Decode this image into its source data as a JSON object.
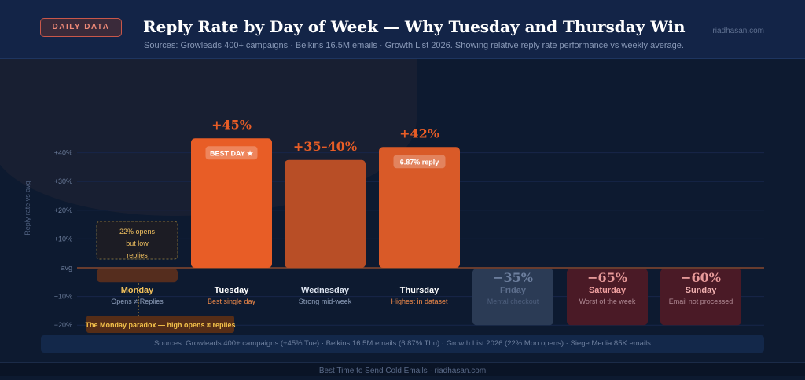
{
  "header": {
    "badge": "DAILY DATA",
    "title": "Reply Rate by Day of Week — Why Tuesday and Thursday Win",
    "subtitle": "Sources: Growleads 400+ campaigns · Belkins 16.5M emails · Growth List 2026. Showing relative reply rate performance vs weekly average.",
    "site": "riadhasan.com"
  },
  "chart_data": {
    "type": "bar",
    "ylabel": "Reply rate vs avg",
    "ylim": [
      -20,
      40
    ],
    "yticks": [
      40,
      30,
      20,
      10,
      0,
      -10,
      -20
    ],
    "ytick_labels": [
      "+40%",
      "+30%",
      "+20%",
      "+10%",
      "avg",
      "−10%",
      "−20%"
    ],
    "categories": [
      "Monday",
      "Tuesday",
      "Wednesday",
      "Thursday",
      "Friday",
      "Saturday",
      "Sunday"
    ],
    "values": [
      -5,
      45,
      37.5,
      42,
      -35,
      -65,
      -60
    ],
    "value_labels": [
      "",
      "+45%",
      "+35–40%",
      "+42%",
      "−35%",
      "−65%",
      "−60%"
    ],
    "captions": [
      "Opens ≠ Replies",
      "Best single day",
      "Strong mid-week",
      "Highest in dataset",
      "Mental checkout",
      "Worst of the week",
      "Email not processed"
    ],
    "bar_tags": [
      "",
      "BEST DAY ★",
      "",
      "6.87% reply",
      "",
      "",
      ""
    ],
    "colors": {
      "accent": "#e85d26",
      "wednesday": "#b84e26",
      "thursday": "#d95a28",
      "monday": "#5a2e1e",
      "friday": "#2b3b55",
      "weekend": "#4a1a26",
      "negative_label": "#e89a9a"
    },
    "annotations": {
      "monday_note": [
        "22% opens",
        "but low",
        "replies"
      ],
      "monday_paradox": "The Monday paradox — high opens ≠ replies"
    }
  },
  "footer": {
    "sources": "Sources: Growleads 400+ campaigns (+45% Tue) · Belkins 16.5M emails (6.87% Thu) · Growth List 2026 (22% Mon opens) · Siege Media 85K emails",
    "bottom": "Best Time to Send Cold Emails · riadhasan.com"
  }
}
